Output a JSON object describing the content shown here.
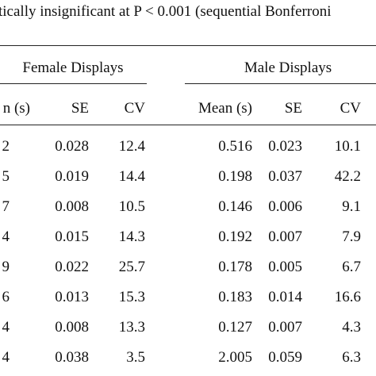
{
  "caption": "tically insignificant at P < 0.001 (sequential Bonferroni",
  "table": {
    "groups": [
      "Female Displays",
      "Male Displays"
    ],
    "header": [
      "n (s)",
      "SE",
      "CV",
      "Mean (s)",
      "SE",
      "CV"
    ],
    "rows": [
      [
        "2",
        "0.028",
        "12.4",
        "0.516",
        "0.023",
        "10.1"
      ],
      [
        "5",
        "0.019",
        "14.4",
        "0.198",
        "0.037",
        "42.2"
      ],
      [
        "7",
        "0.008",
        "10.5",
        "0.146",
        "0.006",
        "9.1"
      ],
      [
        "4",
        "0.015",
        "14.3",
        "0.192",
        "0.007",
        "7.9"
      ],
      [
        "9",
        "0.022",
        "25.7",
        "0.178",
        "0.005",
        "6.7"
      ],
      [
        "6",
        "0.013",
        "15.3",
        "0.183",
        "0.014",
        "16.6"
      ],
      [
        "4",
        "0.008",
        "13.3",
        "0.127",
        "0.007",
        "4.3"
      ],
      [
        "4",
        "0.038",
        "3.5",
        "2.005",
        "0.059",
        "6.3"
      ]
    ]
  }
}
